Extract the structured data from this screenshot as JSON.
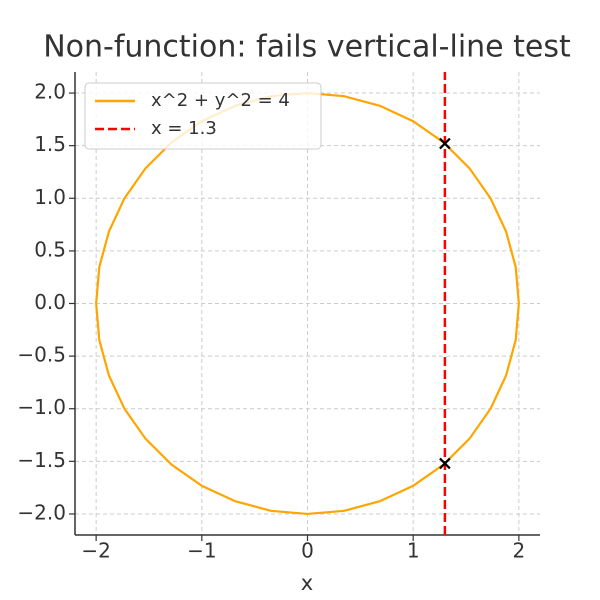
{
  "chart_data": {
    "type": "line",
    "title": "Non-function: fails vertical-line test",
    "x_label": "x",
    "xlim": [
      -2.2,
      2.2
    ],
    "ylim": [
      -2.2,
      2.2
    ],
    "xticks": [
      {
        "value": -2,
        "label": "−2"
      },
      {
        "value": -1,
        "label": "−1"
      },
      0,
      1,
      2
    ],
    "yticks": [
      {
        "value": -2,
        "label": "−2.0"
      },
      {
        "value": -1.5,
        "label": "−1.5"
      },
      {
        "value": -1,
        "label": "−1.0"
      },
      {
        "value": -0.5,
        "label": "−0.5"
      },
      {
        "value": 0,
        "label": "0.0"
      },
      0.5,
      {
        "value": 1,
        "label": "1.0"
      },
      1.5,
      {
        "value": 2,
        "label": "2.0"
      }
    ],
    "grid": true,
    "legend": "upper left",
    "series": [
      {
        "name": "x^2 + y^2 = 4",
        "color": "#ffa500",
        "dash": false,
        "x": [
          2,
          1.97,
          1.879,
          1.732,
          1.532,
          1.286,
          1,
          0.684,
          0.347,
          0,
          -0.347,
          -0.684,
          -1,
          -1.286,
          -1.532,
          -1.732,
          -1.879,
          -1.97,
          -2,
          -1.97,
          -1.879,
          -1.732,
          -1.532,
          -1.286,
          -1,
          -0.684,
          -0.347,
          0,
          0.347,
          0.684,
          1,
          1.286,
          1.532,
          1.732,
          1.879,
          1.97,
          2
        ],
        "y": [
          0,
          0.347,
          0.684,
          1,
          1.286,
          1.532,
          1.732,
          1.879,
          1.97,
          2,
          1.97,
          1.879,
          1.732,
          1.532,
          1.286,
          1,
          0.684,
          0.347,
          0,
          -0.347,
          -0.684,
          -1,
          -1.286,
          -1.532,
          -1.732,
          -1.879,
          -1.97,
          -2,
          -1.97,
          -1.879,
          -1.732,
          -1.532,
          -1.286,
          -1,
          -0.684,
          -0.347,
          0
        ]
      },
      {
        "name": "x = 1.3",
        "color": "#ff0000",
        "dash": true,
        "x": [
          1.3,
          1.3
        ],
        "y": [
          -2.2,
          2.2
        ]
      }
    ],
    "markers": {
      "color": "#000000",
      "x": [
        1.3,
        1.3
      ],
      "y": [
        1.52,
        -1.52
      ]
    }
  }
}
